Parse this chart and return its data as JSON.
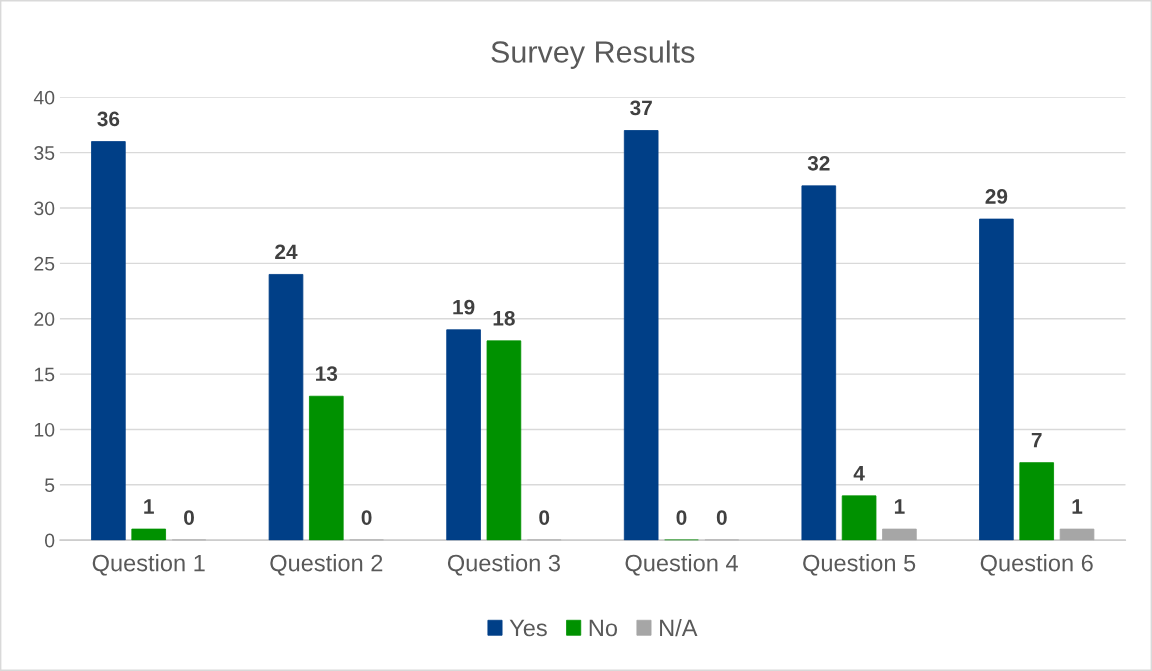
{
  "chart_data": {
    "type": "bar",
    "title": "Survey Results",
    "categories": [
      "Question 1",
      "Question 2",
      "Question 3",
      "Question 4",
      "Question 5",
      "Question 6"
    ],
    "series": [
      {
        "name": "Yes",
        "color": "#003f87",
        "values": [
          36,
          24,
          19,
          37,
          32,
          29
        ]
      },
      {
        "name": "No",
        "color": "#009100",
        "values": [
          1,
          13,
          18,
          0,
          4,
          7
        ]
      },
      {
        "name": "N/A",
        "color": "#a6a6a6",
        "values": [
          0,
          0,
          0,
          0,
          1,
          1
        ]
      }
    ],
    "ylim": [
      0,
      40
    ],
    "yticks": [
      0,
      5,
      10,
      15,
      20,
      25,
      30,
      35,
      40
    ],
    "grid": "y",
    "legend": "bottom",
    "data_labels": true
  }
}
